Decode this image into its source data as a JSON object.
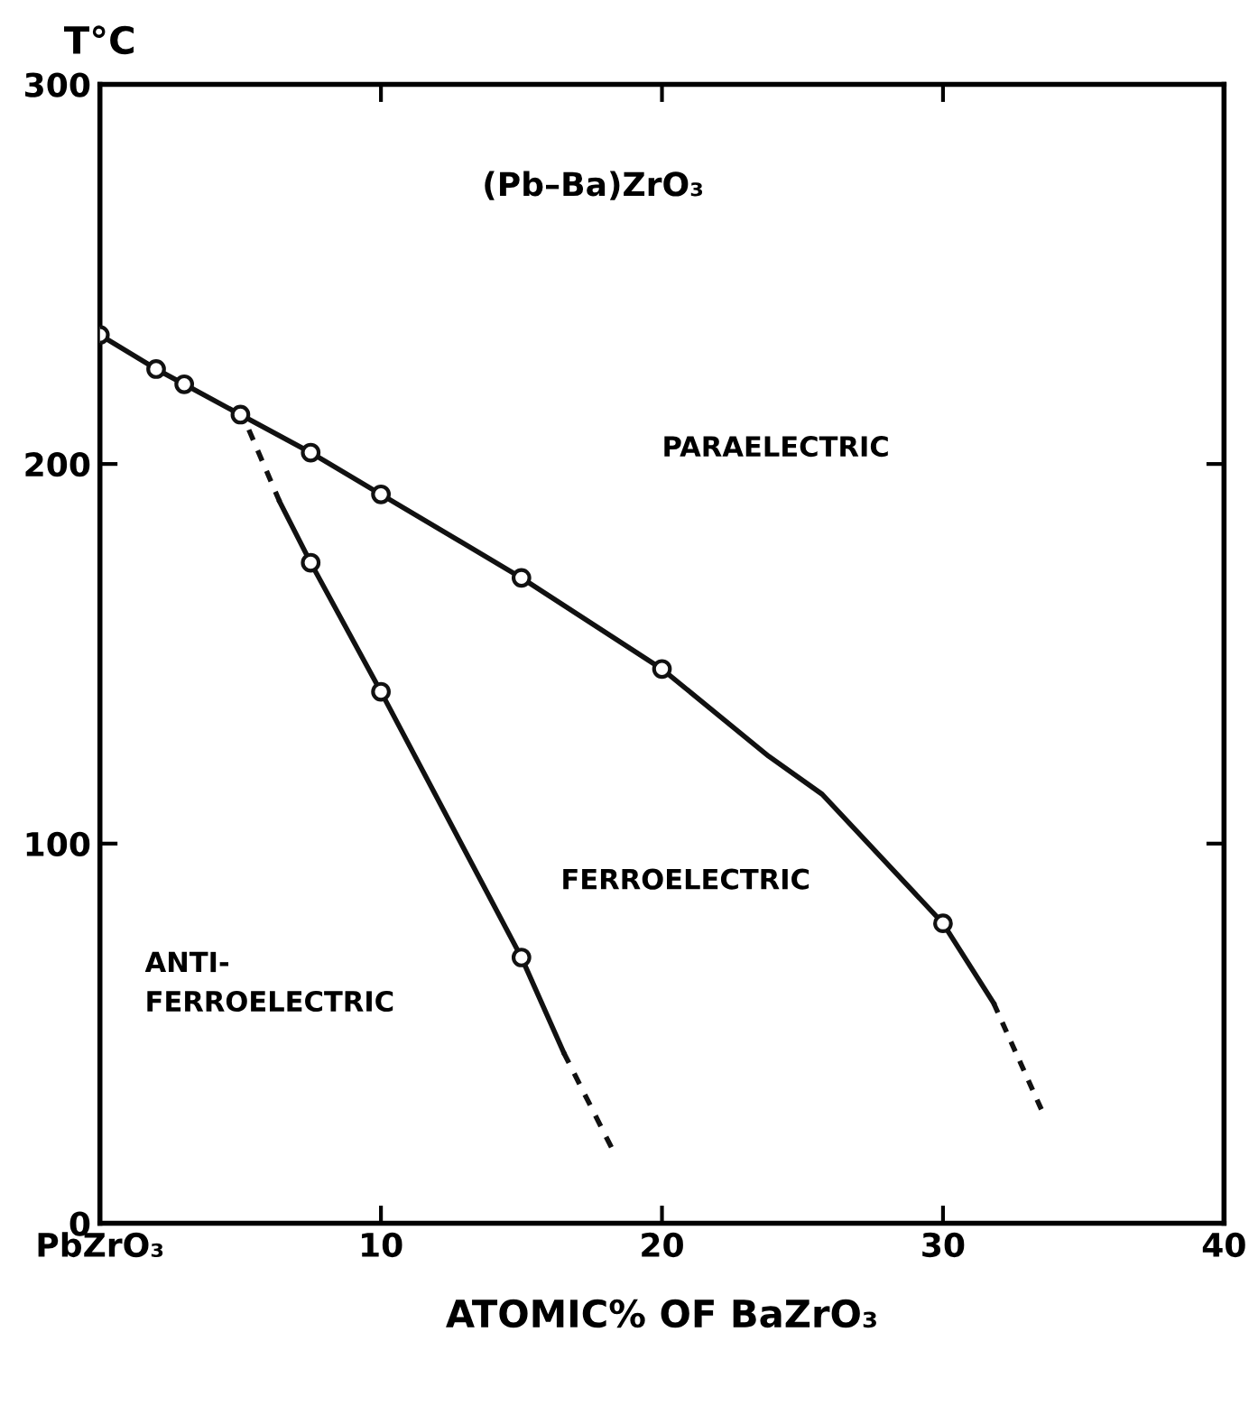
{
  "chart_data": {
    "type": "line",
    "xlabel": "ATOMIC% OF BaZrO₃",
    "ylabel": "T°C",
    "xlim": [
      0,
      40
    ],
    "ylim": [
      0,
      300
    ],
    "xticks": [
      {
        "value": 0,
        "label": "PbZrO₃"
      },
      10,
      20,
      30,
      40
    ],
    "yticks": [
      0,
      100,
      200,
      300
    ],
    "grid": false,
    "legend": false,
    "series": [
      {
        "line_style": "solid",
        "marker": "none",
        "color": "#111111",
        "x": [
          0,
          2,
          3,
          5,
          7.5,
          10,
          15,
          20,
          23.8,
          25.7,
          30,
          31.8
        ],
        "values": [
          234,
          225,
          221,
          213,
          203,
          192,
          170,
          146,
          123,
          113,
          79,
          58
        ]
      },
      {
        "line_style": "dashed",
        "marker": "none",
        "color": "#111111",
        "x": [
          31.8,
          33.5
        ],
        "values": [
          58,
          30
        ]
      },
      {
        "line_style": "dashed",
        "marker": "none",
        "color": "#111111",
        "x": [
          5.3,
          6.4
        ],
        "values": [
          209,
          190
        ]
      },
      {
        "line_style": "solid",
        "marker": "none",
        "color": "#111111",
        "x": [
          6.4,
          7.5,
          10,
          15,
          16.5
        ],
        "values": [
          190,
          174,
          140,
          70,
          45
        ]
      },
      {
        "line_style": "dashed",
        "marker": "none",
        "color": "#111111",
        "x": [
          16.5,
          18.2
        ],
        "values": [
          45,
          20
        ]
      },
      {
        "type": "scatter",
        "marker": "circle",
        "color": "#111111",
        "x": [
          0,
          2,
          3,
          5,
          7.5,
          10,
          15,
          20,
          30,
          7.5,
          10,
          15
        ],
        "values": [
          234,
          225,
          221,
          213,
          203,
          192,
          170,
          146,
          79,
          174,
          140,
          70
        ]
      }
    ],
    "annotations": [
      "(Pb–Ba)ZrO₃",
      "PARAELECTRIC",
      "FERROELECTRIC",
      "ANTI-\nFERROELECTRIC"
    ]
  }
}
